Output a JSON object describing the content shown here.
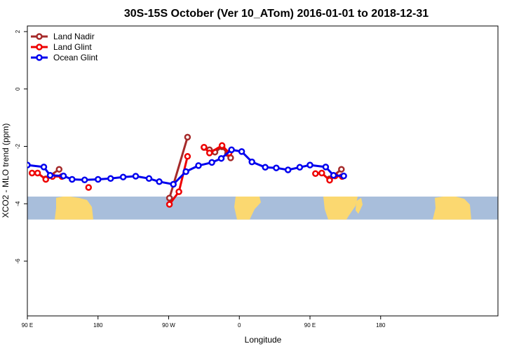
{
  "chart_data": {
    "type": "line",
    "title": "30S-15S October (Ver 10_ATom)   2016-01-01 to 2018-12-31",
    "xlabel": "Longitude",
    "ylabel": "XCO2 - MLO trend (ppm)",
    "xlim": [
      90,
      450
    ],
    "ylim": [
      -8,
      2.2
    ],
    "x_ticks": [
      {
        "value": 90,
        "label": "90 E"
      },
      {
        "value": 180,
        "label": "180"
      },
      {
        "value": 270,
        "label": "90 W"
      },
      {
        "value": 360,
        "label": "0"
      },
      {
        "value": 450,
        "label": "90 E"
      },
      {
        "value": 540,
        "label": "180"
      }
    ],
    "y_ticks": [
      {
        "value": 2,
        "label": "2"
      },
      {
        "value": 0,
        "label": "0"
      },
      {
        "value": -2,
        "label": "-2"
      },
      {
        "value": -4,
        "label": "-4"
      },
      {
        "value": -6,
        "label": "-6"
      }
    ],
    "grid": false,
    "legend_position": "top-left",
    "background_map": {
      "y_range": [
        -4.55,
        -3.75
      ],
      "ocean_color": "#a8bedb",
      "land_color": "#fbd870"
    },
    "series": [
      {
        "name": "Land Nadir",
        "color": "#a52a2a",
        "segments": [
          [
            [
              113.5,
              -3.13
            ],
            [
              130.5,
              -2.8
            ]
          ],
          [
            [
              271,
              -3.8
            ],
            [
              294,
              -1.68
            ]
          ],
          [
            [
              315,
              -2.04
            ],
            [
              322,
              -2.12
            ],
            [
              329,
              -2.2
            ],
            [
              338,
              -2.02
            ],
            [
              345,
              -2.25
            ],
            [
              349,
              -2.4
            ]
          ],
          [
            [
              475,
              -3.13
            ],
            [
              490,
              -2.8
            ]
          ]
        ]
      },
      {
        "name": "Land Glint",
        "color": "#ee0000",
        "segments": [
          [
            [
              96,
              -2.93
            ],
            [
              103,
              -2.93
            ],
            [
              113.5,
              -3.15
            ],
            [
              122,
              -3.05
            ],
            [
              134,
              -3.05
            ]
          ],
          [
            [
              168,
              -3.43
            ]
          ],
          [
            [
              271,
              -4.02
            ],
            [
              283,
              -3.58
            ],
            [
              294,
              -2.35
            ]
          ],
          [
            [
              315,
              -2.03
            ],
            [
              322,
              -2.23
            ],
            [
              338,
              -1.97
            ],
            [
              347,
              -2.23
            ]
          ],
          [
            [
              457,
              -2.95
            ],
            [
              465,
              -2.93
            ],
            [
              475,
              -3.18
            ],
            [
              482,
              -3.03
            ],
            [
              491,
              -3.05
            ]
          ]
        ]
      },
      {
        "name": "Ocean Glint",
        "color": "#0000ee",
        "segments": [
          [
            [
              65,
              -2.82
            ],
            [
              81,
              -2.72
            ],
            [
              90,
              -2.65
            ],
            [
              111,
              -2.72
            ],
            [
              119,
              -3.01
            ],
            [
              136,
              -3.03
            ],
            [
              147,
              -3.15
            ],
            [
              163,
              -3.17
            ],
            [
              180,
              -3.15
            ],
            [
              196,
              -3.12
            ],
            [
              212,
              -3.07
            ],
            [
              228,
              -3.04
            ],
            [
              245,
              -3.12
            ],
            [
              258,
              -3.23
            ],
            [
              276,
              -3.32
            ],
            [
              292,
              -2.88
            ],
            [
              308,
              -2.67
            ],
            [
              325,
              -2.56
            ],
            [
              337,
              -2.42
            ],
            [
              350,
              -2.12
            ],
            [
              363,
              -2.18
            ],
            [
              376,
              -2.54
            ],
            [
              393,
              -2.73
            ],
            [
              407,
              -2.75
            ],
            [
              422,
              -2.82
            ],
            [
              437,
              -2.73
            ],
            [
              450,
              -2.65
            ],
            [
              470,
              -2.72
            ],
            [
              480,
              -3.01
            ],
            [
              493,
              -3.03
            ]
          ]
        ]
      }
    ]
  }
}
